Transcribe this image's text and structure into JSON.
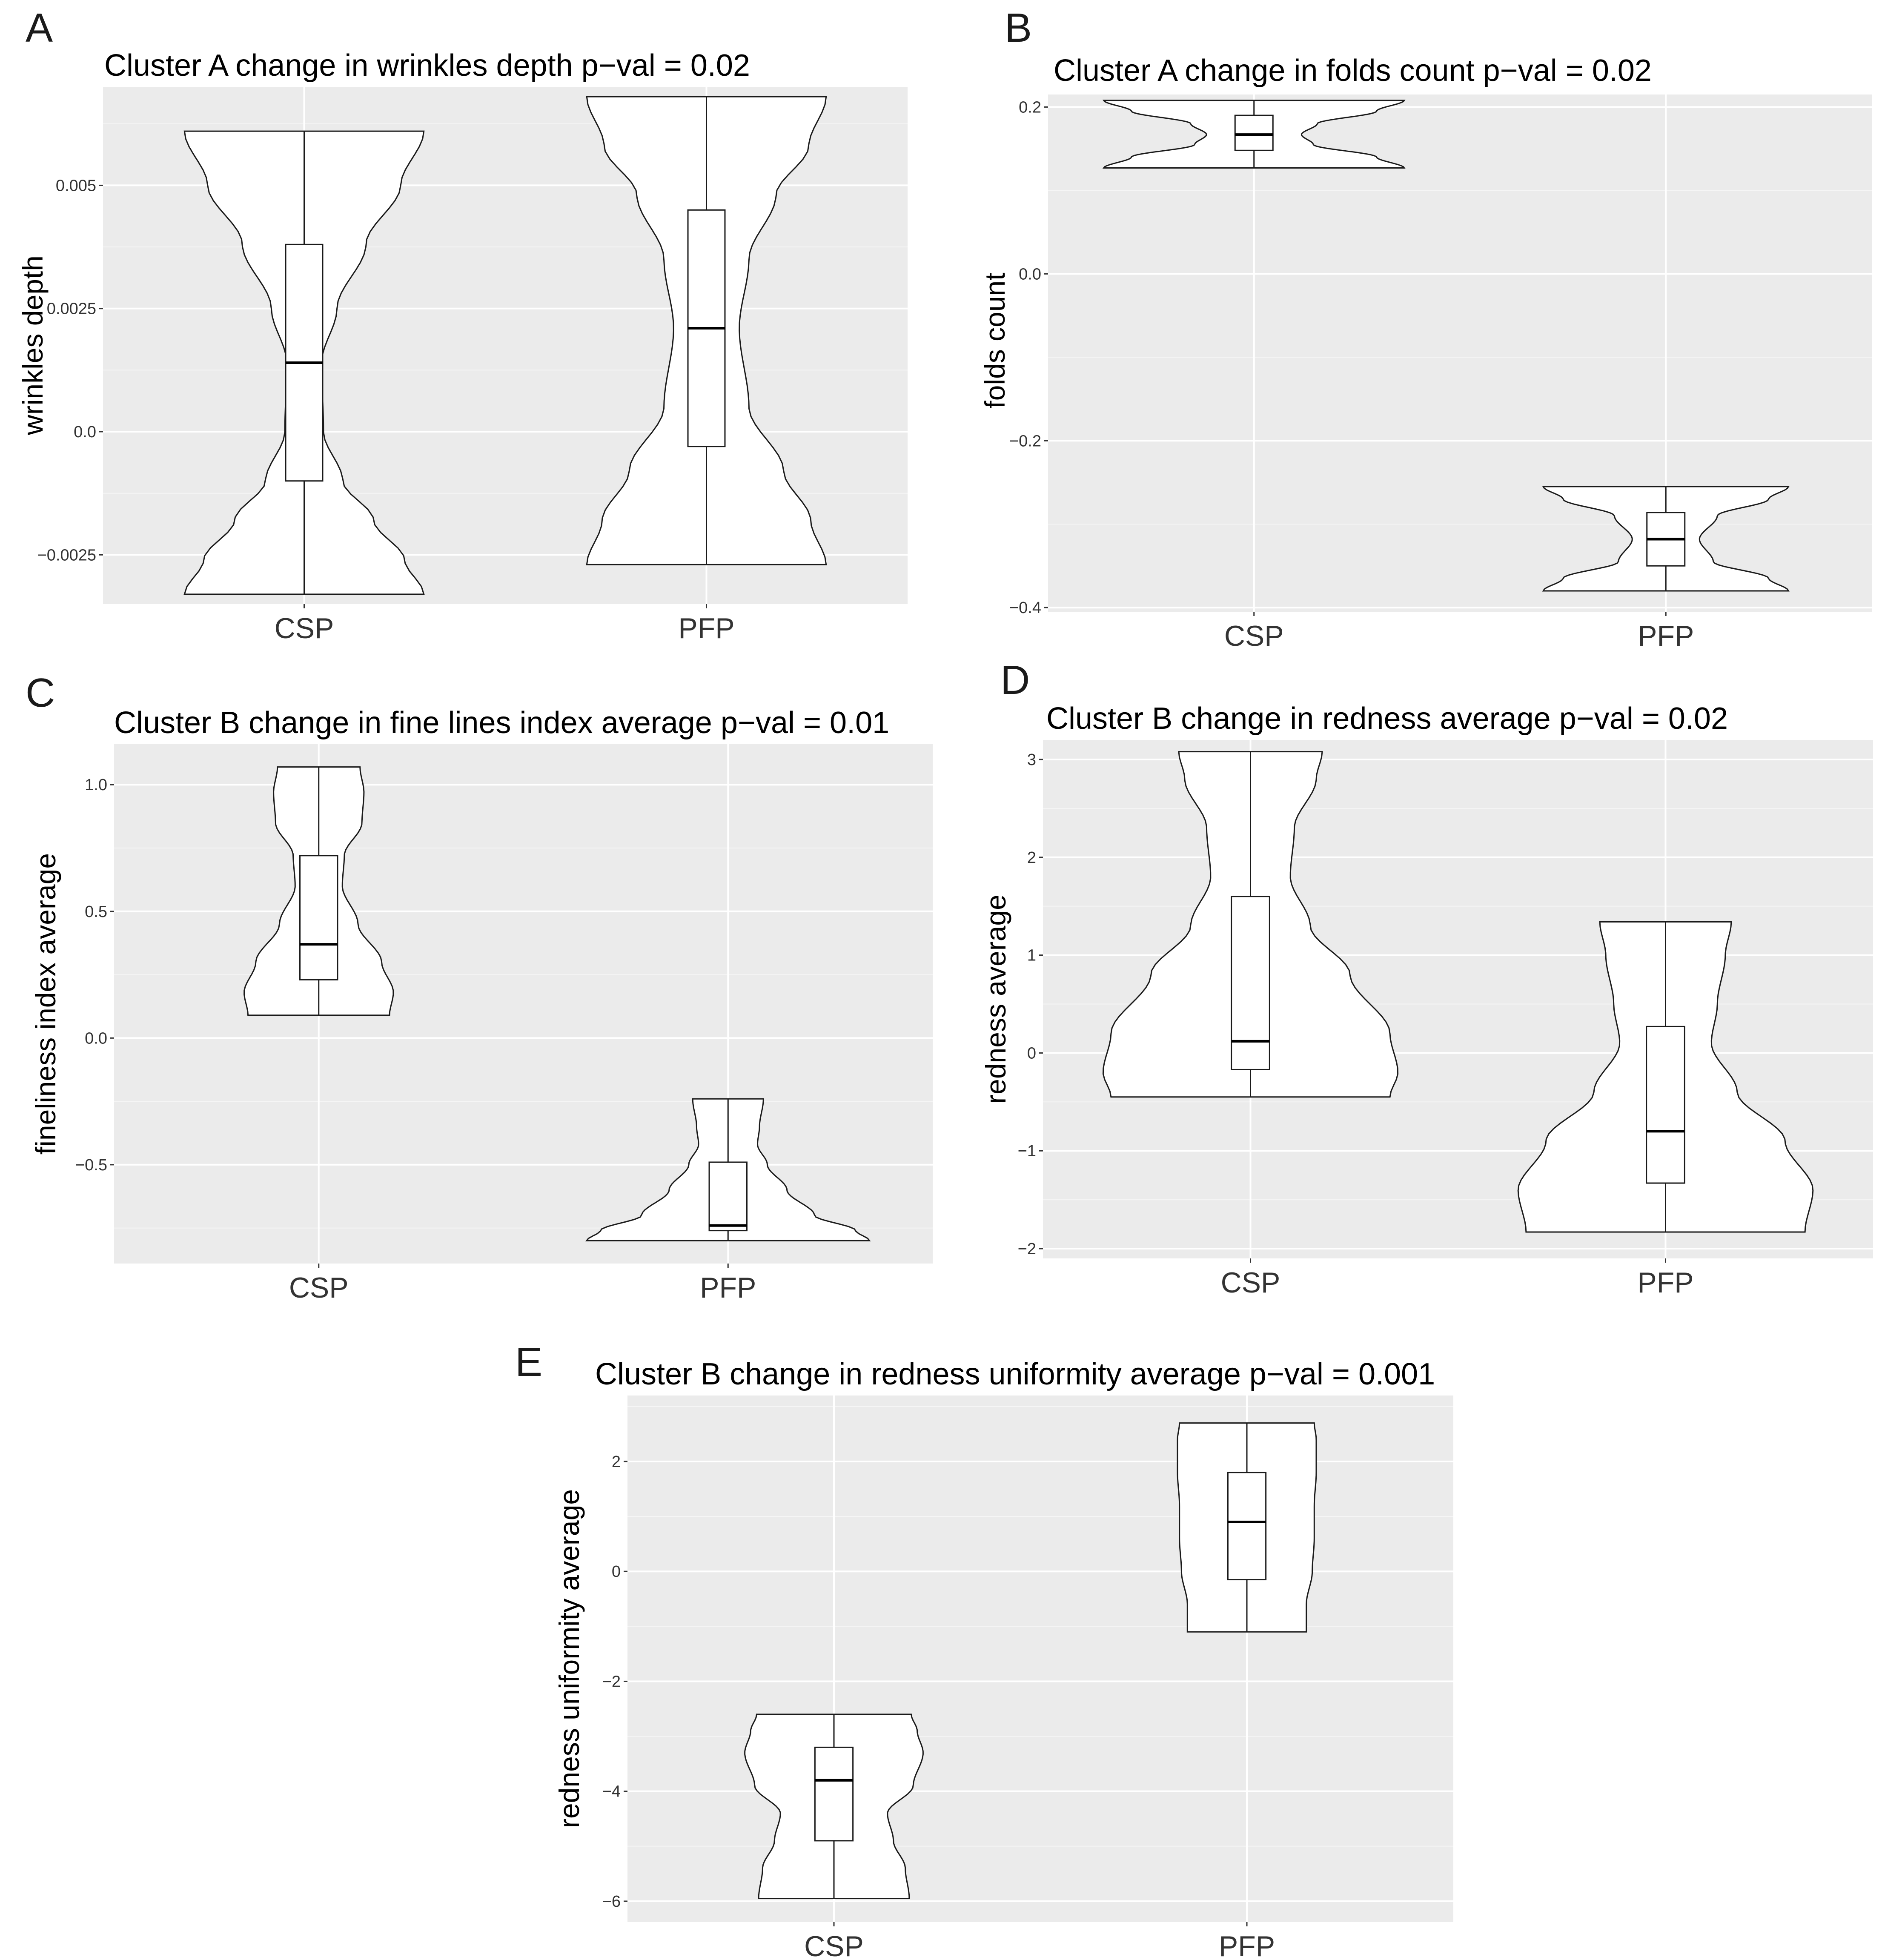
{
  "panels": [
    {
      "letter": "A",
      "chart_data": {
        "type": "violin",
        "title": "Cluster A change in wrinkles depth  p−val = 0.02",
        "ylabel": "wrinkles depth",
        "xlabel": "",
        "categories": [
          "CSP",
          "PFP"
        ],
        "ylim": [
          -0.0035,
          0.007
        ],
        "yticks": [
          -0.0025,
          0.0,
          0.0025,
          0.005
        ],
        "ytick_labels": [
          "−0.0025",
          "0.0",
          "0.0025",
          "0.005"
        ],
        "grid": true,
        "groups": [
          {
            "name": "CSP",
            "min": -0.0033,
            "q1": -0.001,
            "median": 0.0014,
            "q3": 0.0038,
            "max": 0.0061,
            "density": [
              [
                -0.0033,
                0.62
              ],
              [
                -0.0026,
                0.52
              ],
              [
                -0.0018,
                0.36
              ],
              [
                -0.001,
                0.2
              ],
              [
                0.0,
                0.1
              ],
              [
                0.0014,
                0.09
              ],
              [
                0.0025,
                0.17
              ],
              [
                0.0038,
                0.32
              ],
              [
                0.005,
                0.5
              ],
              [
                0.0061,
                0.62
              ]
            ]
          },
          {
            "name": "PFP",
            "min": -0.0027,
            "q1": -0.0003,
            "median": 0.0021,
            "q3": 0.0045,
            "max": 0.0068,
            "density": [
              [
                -0.0027,
                0.62
              ],
              [
                -0.0018,
                0.54
              ],
              [
                -0.0008,
                0.4
              ],
              [
                0.0005,
                0.22
              ],
              [
                0.0021,
                0.17
              ],
              [
                0.0035,
                0.22
              ],
              [
                0.0048,
                0.36
              ],
              [
                0.0058,
                0.53
              ],
              [
                0.0068,
                0.62
              ]
            ]
          }
        ]
      }
    },
    {
      "letter": "B",
      "chart_data": {
        "type": "violin",
        "title": "Cluster A change in folds count p−val = 0.02",
        "ylabel": "folds count",
        "xlabel": "",
        "categories": [
          "CSP",
          "PFP"
        ],
        "ylim": [
          -0.405,
          0.215
        ],
        "yticks": [
          -0.4,
          -0.2,
          0.0,
          0.2
        ],
        "ytick_labels": [
          "−0.4",
          "−0.2",
          "0.0",
          "0.2"
        ],
        "grid": true,
        "groups": [
          {
            "name": "CSP",
            "min": 0.127,
            "q1": 0.148,
            "median": 0.167,
            "q3": 0.19,
            "max": 0.208,
            "density": [
              [
                0.127,
                0.76
              ],
              [
                0.14,
                0.62
              ],
              [
                0.155,
                0.3
              ],
              [
                0.167,
                0.24
              ],
              [
                0.18,
                0.32
              ],
              [
                0.195,
                0.62
              ],
              [
                0.208,
                0.76
              ]
            ]
          },
          {
            "name": "PFP",
            "min": -0.38,
            "q1": -0.35,
            "median": -0.318,
            "q3": -0.286,
            "max": -0.255,
            "density": [
              [
                -0.38,
                0.62
              ],
              [
                -0.365,
                0.52
              ],
              [
                -0.345,
                0.24
              ],
              [
                -0.318,
                0.17
              ],
              [
                -0.29,
                0.26
              ],
              [
                -0.27,
                0.52
              ],
              [
                -0.255,
                0.62
              ]
            ]
          }
        ]
      }
    },
    {
      "letter": "C",
      "chart_data": {
        "type": "violin",
        "title": "Cluster B change in fine lines index average p−val = 0.01",
        "ylabel": "fineliness index average",
        "xlabel": "",
        "categories": [
          "CSP",
          "PFP"
        ],
        "ylim": [
          -0.89,
          1.16
        ],
        "yticks": [
          -0.5,
          0.0,
          0.5,
          1.0
        ],
        "ytick_labels": [
          "−0.5",
          "0.0",
          "0.5",
          "1.0"
        ],
        "grid": true,
        "groups": [
          {
            "name": "CSP",
            "min": 0.09,
            "q1": 0.23,
            "median": 0.37,
            "q3": 0.72,
            "max": 1.07,
            "density": [
              [
                0.09,
                0.36
              ],
              [
                0.18,
                0.38
              ],
              [
                0.3,
                0.32
              ],
              [
                0.45,
                0.2
              ],
              [
                0.6,
                0.12
              ],
              [
                0.72,
                0.13
              ],
              [
                0.85,
                0.22
              ],
              [
                0.97,
                0.23
              ],
              [
                1.07,
                0.21
              ]
            ]
          },
          {
            "name": "PFP",
            "min": -0.8,
            "q1": -0.76,
            "median": -0.74,
            "q3": -0.49,
            "max": -0.24,
            "density": [
              [
                -0.8,
                0.72
              ],
              [
                -0.76,
                0.65
              ],
              [
                -0.7,
                0.44
              ],
              [
                -0.6,
                0.3
              ],
              [
                -0.5,
                0.2
              ],
              [
                -0.42,
                0.15
              ],
              [
                -0.35,
                0.16
              ],
              [
                -0.24,
                0.18
              ]
            ]
          }
        ]
      }
    },
    {
      "letter": "D",
      "chart_data": {
        "type": "violin",
        "title": "Cluster B change in redness average p−val = 0.02",
        "ylabel": "redness average",
        "xlabel": "",
        "categories": [
          "CSP",
          "PFP"
        ],
        "ylim": [
          -2.1,
          3.2
        ],
        "yticks": [
          -2,
          -1,
          0,
          1,
          2,
          3
        ],
        "ytick_labels": [
          "−2",
          "−1",
          "0",
          "1",
          "2",
          "3"
        ],
        "grid": true,
        "groups": [
          {
            "name": "CSP",
            "min": -0.45,
            "q1": -0.17,
            "median": 0.12,
            "q3": 1.6,
            "max": 3.08,
            "density": [
              [
                -0.45,
                0.7
              ],
              [
                -0.2,
                0.74
              ],
              [
                0.2,
                0.7
              ],
              [
                0.8,
                0.5
              ],
              [
                1.3,
                0.3
              ],
              [
                1.8,
                0.2
              ],
              [
                2.3,
                0.22
              ],
              [
                2.8,
                0.33
              ],
              [
                3.08,
                0.36
              ]
            ]
          },
          {
            "name": "PFP",
            "min": -1.83,
            "q1": -1.33,
            "median": -0.8,
            "q3": 0.27,
            "max": 1.34,
            "density": [
              [
                -1.83,
                0.7
              ],
              [
                -1.4,
                0.74
              ],
              [
                -0.9,
                0.6
              ],
              [
                -0.4,
                0.36
              ],
              [
                0.1,
                0.23
              ],
              [
                0.5,
                0.26
              ],
              [
                1.0,
                0.3
              ],
              [
                1.34,
                0.33
              ]
            ]
          }
        ]
      }
    },
    {
      "letter": "E",
      "chart_data": {
        "type": "violin",
        "title": "Cluster B change in redness uniformity average p−val = 0.001",
        "ylabel": "redness uniformity average",
        "xlabel": "",
        "categories": [
          "CSP",
          "PFP"
        ],
        "ylim": [
          -6.38,
          3.2
        ],
        "yticks": [
          -6,
          -4,
          -2,
          0,
          2
        ],
        "ytick_labels": [
          "−6",
          "−4",
          "−2",
          "0",
          "2"
        ],
        "grid": true,
        "groups": [
          {
            "name": "CSP",
            "min": -5.95,
            "q1": -4.9,
            "median": -3.8,
            "q3": -3.2,
            "max": -2.6,
            "density": [
              [
                -5.95,
                0.38
              ],
              [
                -5.4,
                0.36
              ],
              [
                -4.9,
                0.3
              ],
              [
                -4.4,
                0.27
              ],
              [
                -3.9,
                0.4
              ],
              [
                -3.3,
                0.45
              ],
              [
                -2.9,
                0.42
              ],
              [
                -2.6,
                0.39
              ]
            ]
          },
          {
            "name": "PFP",
            "min": -1.1,
            "q1": -0.15,
            "median": 0.9,
            "q3": 1.8,
            "max": 2.7,
            "density": [
              [
                -1.1,
                0.3
              ],
              [
                -0.6,
                0.3
              ],
              [
                0.0,
                0.33
              ],
              [
                0.6,
                0.34
              ],
              [
                1.2,
                0.34
              ],
              [
                1.8,
                0.35
              ],
              [
                2.4,
                0.35
              ],
              [
                2.7,
                0.34
              ]
            ]
          }
        ]
      }
    }
  ]
}
